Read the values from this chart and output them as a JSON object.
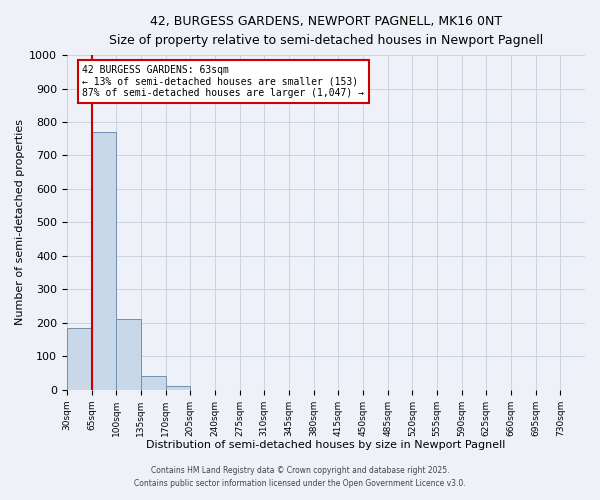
{
  "title": "42, BURGESS GARDENS, NEWPORT PAGNELL, MK16 0NT",
  "subtitle": "Size of property relative to semi-detached houses in Newport Pagnell",
  "xlabel": "Distribution of semi-detached houses by size in Newport Pagnell",
  "ylabel": "Number of semi-detached properties",
  "bar_values": [
    185,
    770,
    210,
    40,
    10,
    0,
    0,
    0,
    0,
    0,
    0,
    0,
    0,
    0,
    0,
    0,
    0,
    0,
    0,
    0
  ],
  "bin_labels": [
    "30sqm",
    "65sqm",
    "100sqm",
    "135sqm",
    "170sqm",
    "205sqm",
    "240sqm",
    "275sqm",
    "310sqm",
    "345sqm",
    "380sqm",
    "415sqm",
    "450sqm",
    "485sqm",
    "520sqm",
    "555sqm",
    "590sqm",
    "625sqm",
    "660sqm",
    "695sqm",
    "730sqm"
  ],
  "bar_color": "#c8d8e8",
  "bar_edge_color": "#7090b0",
  "marker_color": "#cc0000",
  "ylim": [
    0,
    1000
  ],
  "yticks": [
    0,
    100,
    200,
    300,
    400,
    500,
    600,
    700,
    800,
    900,
    1000
  ],
  "annotation_title": "42 BURGESS GARDENS: 63sqm",
  "annotation_line1": "← 13% of semi-detached houses are smaller (153)",
  "annotation_line2": "87% of semi-detached houses are larger (1,047) →",
  "annotation_box_color": "#ffffff",
  "annotation_border_color": "#cc0000",
  "bg_color": "#eef2f8",
  "footer1": "Contains HM Land Registry data © Crown copyright and database right 2025.",
  "footer2": "Contains public sector information licensed under the Open Government Licence v3.0."
}
